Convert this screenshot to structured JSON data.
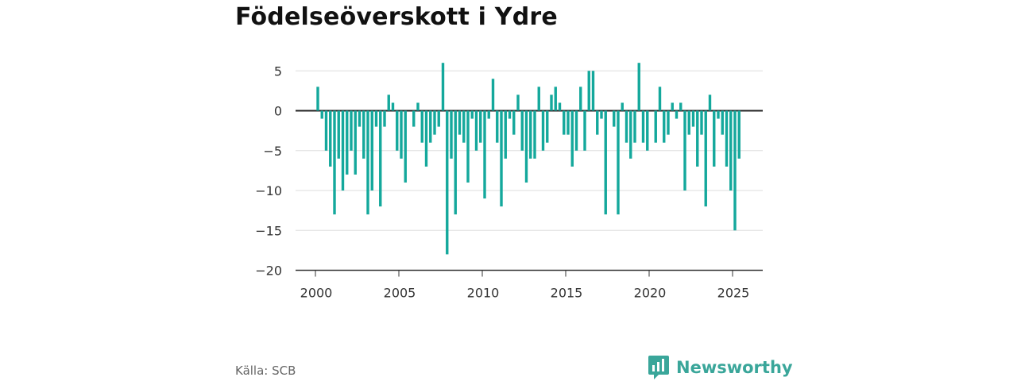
{
  "chart_data": {
    "type": "bar",
    "title": "Födelseöverskott i Ydre",
    "xlabel": "",
    "ylabel": "",
    "ylim": [
      -20,
      7
    ],
    "yticks": [
      5,
      0,
      -5,
      -10,
      -15,
      -20
    ],
    "ytick_labels": [
      "5",
      "0",
      "−5",
      "−10",
      "−15",
      "−20"
    ],
    "xlim": [
      2000.0,
      2026.75
    ],
    "xticks": [
      2000,
      2005,
      2010,
      2015,
      2020,
      2025
    ],
    "xtick_labels": [
      "2000",
      "2005",
      "2010",
      "2015",
      "2020",
      "2025"
    ],
    "grid": true,
    "color": "#14a89c",
    "frequency": "quarterly",
    "start": "2000 Q1",
    "values": [
      3,
      -1,
      -5,
      -7,
      -13,
      -6,
      -10,
      -8,
      -5,
      -8,
      -2,
      -6,
      -13,
      -10,
      -2,
      -12,
      -2,
      2,
      1,
      -5,
      -6,
      -9,
      0,
      -2,
      1,
      -4,
      -7,
      -4,
      -3,
      -2,
      6,
      -18,
      -6,
      -13,
      -3,
      -4,
      -9,
      -1,
      -5,
      -4,
      -11,
      -1,
      4,
      -4,
      -12,
      -6,
      -1,
      -3,
      2,
      -5,
      -9,
      -6,
      -6,
      3,
      -5,
      -4,
      2,
      3,
      1,
      -3,
      -3,
      -7,
      -5,
      3,
      -5,
      5,
      5,
      -3,
      -1,
      -13,
      0,
      -2,
      -13,
      1,
      -4,
      -6,
      -4,
      6,
      -4,
      -5,
      0,
      -4,
      3,
      -4,
      -3,
      1,
      -1,
      1,
      -10,
      -3,
      -2,
      -7,
      -3,
      -12,
      2,
      -7,
      -1,
      -3,
      -7,
      -10,
      -15,
      -6
    ]
  },
  "footer": {
    "source": "Källa: SCB",
    "brand": "Newsworthy"
  }
}
